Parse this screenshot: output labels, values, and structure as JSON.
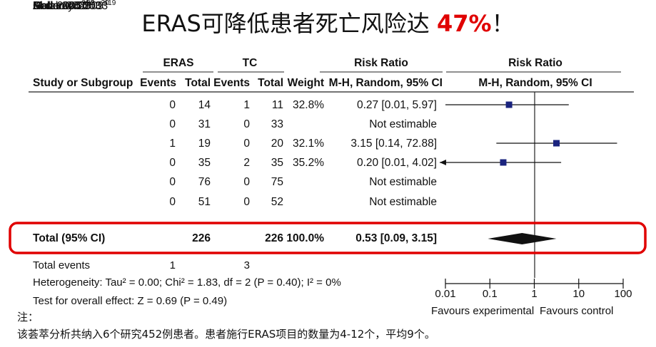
{
  "title": {
    "prefix": "ERAS可降低患者死亡风险达 ",
    "highlight": "47%",
    "suffix": "！"
  },
  "table": {
    "group_headers": {
      "eras": "ERAS",
      "tc": "TC",
      "rr_table": "Risk Ratio",
      "rr_plot": "Risk Ratio"
    },
    "columns": {
      "study": "Study or Subgroup",
      "events1": "Events",
      "total1": "Total",
      "events2": "Events",
      "total2": "Total",
      "weight": "Weight",
      "ci": "M-H, Random, 95% CI",
      "ci_plot": "M-H, Random, 95% CI"
    },
    "rows": [
      {
        "name": "Anderson 2003",
        "ref": "19",
        "e1": "0",
        "t1": "14",
        "e2": "1",
        "t2": "11",
        "weight": "32.8%",
        "ci": "0.27 [0.01, 5.97]"
      },
      {
        "name": "Delaney 2003",
        "ref": "20",
        "e1": "0",
        "t1": "31",
        "e2": "0",
        "t2": "33",
        "weight": "",
        "ci": "Not estimable"
      },
      {
        "name": "Gatt 2005",
        "ref": "21",
        "e1": "1",
        "t1": "19",
        "e2": "0",
        "t2": "20",
        "weight": "32.1%",
        "ci": "3.15 [0.14, 72.88]"
      },
      {
        "name": "Khoo 2007",
        "ref": "22",
        "e1": "0",
        "t1": "35",
        "e2": "2",
        "t2": "35",
        "weight": "35.2%",
        "ci": "0.20 [0.01, 4.02]"
      },
      {
        "name": "Muller 2009",
        "ref": "3",
        "e1": "0",
        "t1": "76",
        "e2": "0",
        "t2": "75",
        "weight": "",
        "ci": "Not estimable"
      },
      {
        "name": "Serclova 2009",
        "ref": "4",
        "e1": "0",
        "t1": "51",
        "e2": "0",
        "t2": "52",
        "weight": "",
        "ci": "Not estimable"
      }
    ],
    "total": {
      "name": "Total (95% CI)",
      "t1": "226",
      "t2": "226",
      "weight": "100.0%",
      "ci": "0.53 [0.09, 3.15]"
    },
    "total_events": {
      "label": "Total events",
      "e1": "1",
      "e2": "3"
    },
    "heterogeneity": "Heterogeneity: Tau² = 0.00; Chi² = 1.83, df = 2 (P = 0.40); I² = 0%",
    "overall_effect": "Test for overall effect: Z = 0.69 (P = 0.49)"
  },
  "chart_data": {
    "type": "forest",
    "scale": "log",
    "xlim": [
      0.01,
      100
    ],
    "ticks": [
      0.01,
      0.1,
      1,
      10,
      100
    ],
    "tick_labels": [
      "0.01",
      "0.1",
      "1",
      "10",
      "100"
    ],
    "favours_left": "Favours experimental",
    "favours_right": "Favours control",
    "studies": [
      {
        "name": "Anderson 2003",
        "rr": 0.27,
        "lo": 0.01,
        "hi": 5.97,
        "estimable": true
      },
      {
        "name": "Delaney 2003",
        "estimable": false
      },
      {
        "name": "Gatt 2005",
        "rr": 3.15,
        "lo": 0.14,
        "hi": 72.88,
        "estimable": true
      },
      {
        "name": "Khoo 2007",
        "rr": 0.2,
        "lo": 0.01,
        "hi": 4.02,
        "estimable": true
      },
      {
        "name": "Muller 2009",
        "estimable": false
      },
      {
        "name": "Serclova 2009",
        "estimable": false
      }
    ],
    "pooled": {
      "name": "Total (95% CI)",
      "rr": 0.53,
      "lo": 0.09,
      "hi": 3.15
    }
  },
  "colors": {
    "marker": "#1a237e",
    "highlight_box": "#e00000",
    "title_highlight": "#e00000"
  },
  "note": {
    "label": "注：",
    "text": "该荟萃分析共纳入6个研究452例患者。患者施行ERAS项目的数量为4-12个，平均9个。"
  }
}
